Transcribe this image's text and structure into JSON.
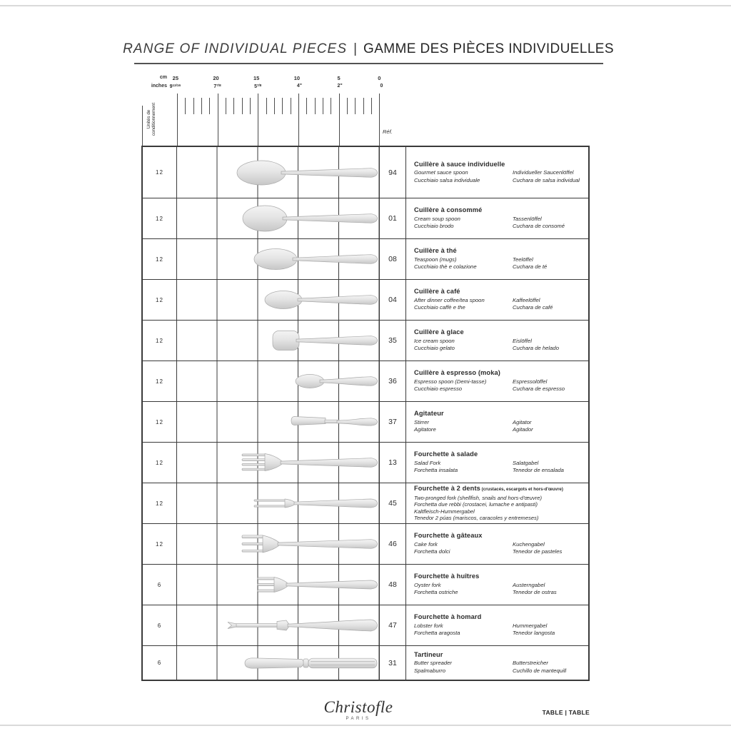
{
  "header": {
    "title_en": "RANGE OF INDIVIDUAL PIECES",
    "separator": "|",
    "title_fr": "GAMME DES PIÈCES INDIVIDUELLES"
  },
  "ruler": {
    "unit_cm": "cm",
    "unit_inches": "inches",
    "packing_label_line1": "Unités de",
    "packing_label_line2": "conditionnement",
    "ref_label": "Réf.",
    "marks": [
      {
        "cm": "25",
        "inches": "9 13/16"
      },
      {
        "cm": "20",
        "inches": "7 7/8"
      },
      {
        "cm": "15",
        "inches": "5 7/8"
      },
      {
        "cm": "10",
        "inches": "4\""
      },
      {
        "cm": "5",
        "inches": "2\""
      },
      {
        "cm": "0",
        "inches": "0"
      }
    ]
  },
  "table": {
    "rows": [
      {
        "qty": "12",
        "ref": "94",
        "icon": "gourmet-sauce-spoon-icon",
        "shape": "spoon",
        "length_cm": 17.6,
        "title": "Cuillère à sauce individuelle",
        "note": "",
        "en": "Gourmet sauce spoon",
        "de": "Individueller Saucenlöffel",
        "it": "Cucchiaio salsa individuale",
        "es": "Cuchara de salsa individual"
      },
      {
        "qty": "12",
        "ref": "01",
        "icon": "cream-soup-spoon-icon",
        "shape": "spoon",
        "length_cm": 16.9,
        "title": "Cuillère à consommé",
        "note": "",
        "en": "Cream soup spoon",
        "de": "Tassenlöffel",
        "it": "Cucchiaio brodo",
        "es": "Cuchara de consomé"
      },
      {
        "qty": "12",
        "ref": "08",
        "icon": "teaspoon-icon",
        "shape": "spoon",
        "length_cm": 15.5,
        "title": "Cuillère à thé",
        "note": "",
        "en": "Teaspoon (mugs)",
        "de": "Teelöffel",
        "it": "Cucchiaio thè e colazione",
        "es": "Cuchara de té"
      },
      {
        "qty": "12",
        "ref": "04",
        "icon": "coffee-spoon-icon",
        "shape": "spoon",
        "length_cm": 14.2,
        "title": "Cuillère à café",
        "note": "",
        "en": "After dinner coffee/tea spoon",
        "de": "Kaffeelöffel",
        "it": "Cucchiaio caffè e the",
        "es": "Cuchara de café"
      },
      {
        "qty": "12",
        "ref": "35",
        "icon": "ice-cream-spoon-icon",
        "shape": "icecream",
        "length_cm": 13.2,
        "title": "Cuillère à glace",
        "note": "",
        "en": "Ice cream spoon",
        "de": "Eislöffel",
        "it": "Cucchiaio gelato",
        "es": "Cuchara de helado"
      },
      {
        "qty": "12",
        "ref": "36",
        "icon": "espresso-spoon-icon",
        "shape": "spoon",
        "length_cm": 10.4,
        "title": "Cuillère à espresso (moka)",
        "note": "",
        "en": "Espresso spoon (Demi-tasse)",
        "de": "Espressolöffel",
        "it": "Cucchiaio espresso",
        "es": "Cuchara de espresso"
      },
      {
        "qty": "12",
        "ref": "37",
        "icon": "stirrer-icon",
        "shape": "stirrer",
        "length_cm": 10.9,
        "title": "Agitateur",
        "note": "",
        "en": "Stirrer",
        "de": "Agitator",
        "it": "Agitatore",
        "es": "Agitador"
      },
      {
        "qty": "12",
        "ref": "13",
        "icon": "salad-fork-icon",
        "shape": "fork4",
        "length_cm": 17.0,
        "title": "Fourchette à salade",
        "note": "",
        "en": "Salad Fork",
        "de": "Salatgabel",
        "it": "Forchetta insalata",
        "es": "Tenedor de ensalada"
      },
      {
        "qty": "12",
        "ref": "45",
        "icon": "two-pronged-fork-icon",
        "shape": "fork2",
        "length_cm": 15.5,
        "title": "Fourchette à 2 dents",
        "note": "(crustacés, escargots et hors-d'œuvre)",
        "lines": [
          "Two-pronged fork (shellfish, snails and hors-d'œuvre)",
          "Forchetta due rebbi (crostacei, lumache e antipasti)",
          "Kaltfleisch-Hummergabel",
          "Tenedor 2 púas (mariscos, caracoles y entremeses)"
        ]
      },
      {
        "qty": "12",
        "ref": "46",
        "icon": "cake-fork-icon",
        "shape": "fork3",
        "length_cm": 17.0,
        "title": "Fourchette à gâteaux",
        "note": "",
        "en": "Cake fork",
        "de": "Kuchengabel",
        "it": "Forchetta dolci",
        "es": "Tenedor de pasteles"
      },
      {
        "qty": "6",
        "ref": "48",
        "icon": "oyster-fork-icon",
        "shape": "fork3small",
        "length_cm": 15.1,
        "title": "Fourchette à huîtres",
        "note": "",
        "en": "Oyster fork",
        "de": "Austerngabel",
        "it": "Forchetta ostriche",
        "es": "Tenedor de ostras"
      },
      {
        "qty": "6",
        "ref": "47",
        "icon": "lobster-fork-icon",
        "shape": "lobster",
        "length_cm": 18.8,
        "title": "Fourchette à homard",
        "note": "",
        "en": "Lobster fork",
        "de": "Hummergabel",
        "it": "Forchetta aragosta",
        "es": "Tenedor langosta"
      },
      {
        "qty": "6",
        "ref": "31",
        "icon": "butter-spreader-icon",
        "shape": "butter",
        "length_cm": 16.7,
        "title": "Tartineur",
        "note": "",
        "en": "Butter spreader",
        "de": "Butterstreicher",
        "it": "Spalmaburro",
        "es": "Cuchillo de mantequill"
      }
    ]
  },
  "footer": {
    "brand": "Christofle",
    "brand_city": "PARIS",
    "section_label": "TABLE | TABLE"
  },
  "colors": {
    "grid": "#3a3a3a",
    "metal_light": "#f4f4f4",
    "metal_dark": "#c7c7c7"
  }
}
